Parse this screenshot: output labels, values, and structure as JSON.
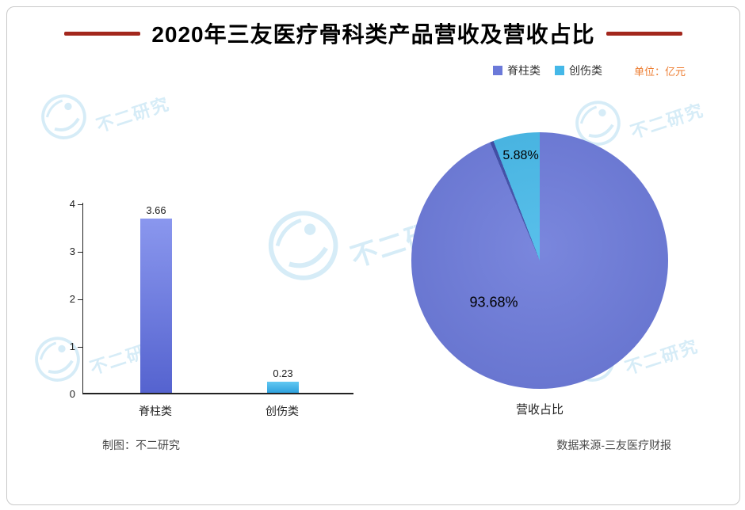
{
  "title": "2020年三友医疗骨科类产品营收及营收占比",
  "legend": [
    {
      "label": "脊柱类",
      "color": "#6b79d9"
    },
    {
      "label": "创伤类",
      "color": "#45b8e8"
    }
  ],
  "unit_label": "单位：亿元",
  "unit_color": "#ed7d31",
  "watermark_text": "不二研究",
  "footer": {
    "left": "制图：不二研究",
    "right": "数据来源-三友医疗财报"
  },
  "chart_data": [
    {
      "type": "bar",
      "categories": [
        "脊柱类",
        "创伤类"
      ],
      "values": [
        3.66,
        0.23
      ],
      "title": "",
      "xlabel": "",
      "ylabel": "",
      "ylim": [
        0,
        4
      ],
      "yticks": [
        0,
        1,
        2,
        3,
        4
      ],
      "grid": false,
      "legend_position": "top-right",
      "bar_gradients": [
        [
          "#8a97ee",
          "#5563cf"
        ],
        [
          "#62c8f2",
          "#2ea2de"
        ]
      ]
    },
    {
      "type": "pie",
      "labels": [
        "脊柱类",
        "创伤类"
      ],
      "values": [
        93.68,
        5.88
      ],
      "pct_labels": [
        "93.68%",
        "5.88%"
      ],
      "colors": [
        "#6b79d9",
        "#45b8e8"
      ],
      "divider_color": "#3c4aa6",
      "title": "营收占比"
    }
  ]
}
